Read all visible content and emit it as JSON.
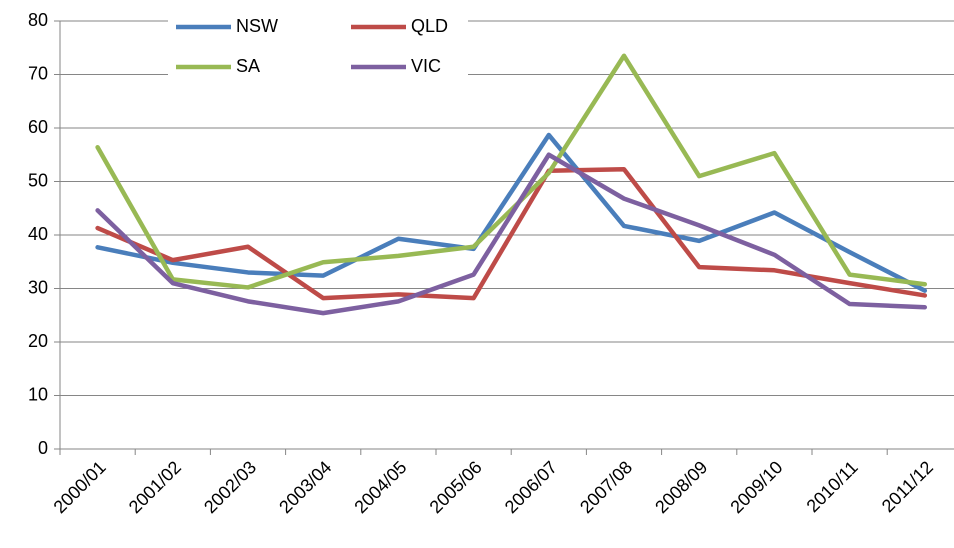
{
  "chart_data": {
    "type": "line",
    "categories": [
      "2000/01",
      "2001/02",
      "2002/03",
      "2003/04",
      "2004/05",
      "2005/06",
      "2006/07",
      "2007/08",
      "2008/09",
      "2009/10",
      "2010/11",
      "2011/12"
    ],
    "series": [
      {
        "name": "NSW",
        "color": "#4a7ebb",
        "values": [
          37.7,
          34.8,
          33.0,
          32.4,
          39.3,
          37.4,
          58.7,
          41.7,
          38.9,
          44.2,
          36.8,
          29.6
        ]
      },
      {
        "name": "QLD",
        "color": "#be4b48",
        "values": [
          41.3,
          35.3,
          37.8,
          28.2,
          28.9,
          28.2,
          52.0,
          52.3,
          34.0,
          33.4,
          31.0,
          28.7
        ]
      },
      {
        "name": "SA",
        "color": "#98b954",
        "values": [
          56.4,
          31.7,
          30.2,
          34.9,
          36.1,
          37.8,
          51.6,
          73.5,
          51.0,
          55.3,
          32.6,
          30.8
        ]
      },
      {
        "name": "VIC",
        "color": "#7d60a0",
        "values": [
          44.6,
          31.0,
          27.6,
          25.4,
          27.6,
          32.6,
          55.0,
          46.8,
          41.8,
          36.3,
          27.1,
          26.5
        ]
      }
    ],
    "ylim": [
      0,
      80
    ],
    "yticks": [
      0,
      10,
      20,
      30,
      40,
      50,
      60,
      70,
      80
    ],
    "grid": true,
    "legend": "top"
  }
}
